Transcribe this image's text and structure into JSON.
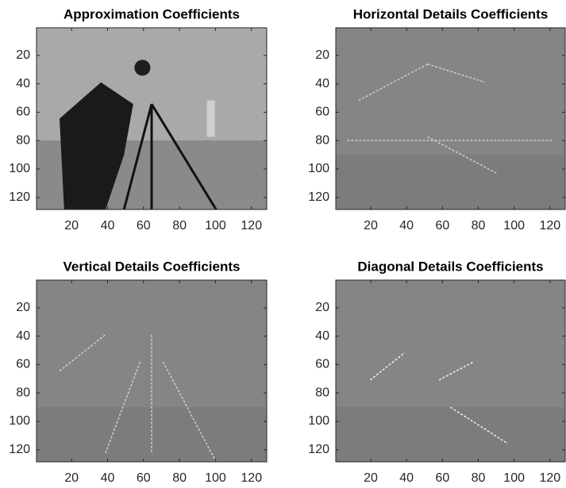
{
  "chart_data": [
    {
      "type": "image",
      "title": "Approximation Coefficients",
      "xlim": [
        0.5,
        128.5
      ],
      "ylim": [
        0.5,
        128.5
      ],
      "y_reversed": true,
      "xticks": [
        20,
        40,
        60,
        80,
        100,
        120
      ],
      "yticks": [
        20,
        40,
        60,
        80,
        100,
        120
      ]
    },
    {
      "type": "image",
      "title": "Horizontal Details Coefficients",
      "xlim": [
        0.5,
        128.5
      ],
      "ylim": [
        0.5,
        128.5
      ],
      "y_reversed": true,
      "xticks": [
        20,
        40,
        60,
        80,
        100,
        120
      ],
      "yticks": [
        20,
        40,
        60,
        80,
        100,
        120
      ]
    },
    {
      "type": "image",
      "title": "Vertical Details Coefficients",
      "xlim": [
        0.5,
        128.5
      ],
      "ylim": [
        0.5,
        128.5
      ],
      "y_reversed": true,
      "xticks": [
        20,
        40,
        60,
        80,
        100,
        120
      ],
      "yticks": [
        20,
        40,
        60,
        80,
        100,
        120
      ]
    },
    {
      "type": "image",
      "title": "Diagonal Details Coefficients",
      "xlim": [
        0.5,
        128.5
      ],
      "ylim": [
        0.5,
        128.5
      ],
      "y_reversed": true,
      "xticks": [
        20,
        40,
        60,
        80,
        100,
        120
      ],
      "yticks": [
        20,
        40,
        60,
        80,
        100,
        120
      ]
    }
  ]
}
